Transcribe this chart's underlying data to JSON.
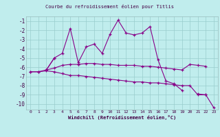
{
  "title": "Courbe du refroidissement éolien pour Titlis",
  "xlabel": "Windchill (Refroidissement éolien,°C)",
  "xlim_min": -0.5,
  "xlim_max": 23.5,
  "ylim_min": -10.6,
  "ylim_max": -0.5,
  "yticks": [
    -1,
    -2,
    -3,
    -4,
    -5,
    -6,
    -7,
    -8,
    -9,
    -10
  ],
  "xticks": [
    0,
    1,
    2,
    3,
    4,
    5,
    6,
    7,
    8,
    9,
    10,
    11,
    12,
    13,
    14,
    15,
    16,
    17,
    18,
    19,
    20,
    21,
    22,
    23
  ],
  "bg_color": "#c0eded",
  "grid_color": "#99cccc",
  "line_color": "#880088",
  "lines": [
    [
      null,
      null,
      -6.3,
      -5.0,
      -4.5,
      -1.8,
      -5.5,
      -3.8,
      -3.5,
      -4.5,
      -2.4,
      -0.9,
      -2.3,
      -2.5,
      -2.3,
      -1.6,
      -5.2,
      -7.5,
      -7.8,
      -8.5,
      null,
      -8.9,
      -9.0,
      null
    ],
    [
      null,
      null,
      -6.3,
      -5.0,
      null,
      null,
      -5.7,
      null,
      null,
      null,
      null,
      null,
      null,
      null,
      null,
      null,
      null,
      null,
      null,
      null,
      null,
      null,
      null,
      null
    ],
    [
      -6.5,
      -6.5,
      -6.3,
      -6.1,
      -5.8,
      -5.7,
      -5.7,
      -5.6,
      -5.6,
      -5.7,
      -5.7,
      -5.8,
      -5.8,
      -5.8,
      -5.9,
      -5.9,
      -6.0,
      -6.1,
      -6.2,
      -6.3,
      -5.7,
      -5.8,
      -5.9,
      null
    ],
    [
      -6.5,
      -6.5,
      -6.4,
      -6.5,
      -6.7,
      -6.9,
      -6.9,
      -7.0,
      -7.1,
      -7.2,
      -7.3,
      -7.4,
      -7.5,
      -7.6,
      -7.6,
      -7.7,
      -7.7,
      -7.8,
      -7.9,
      -8.0,
      -8.0,
      -9.0,
      -9.0,
      -10.4
    ]
  ]
}
